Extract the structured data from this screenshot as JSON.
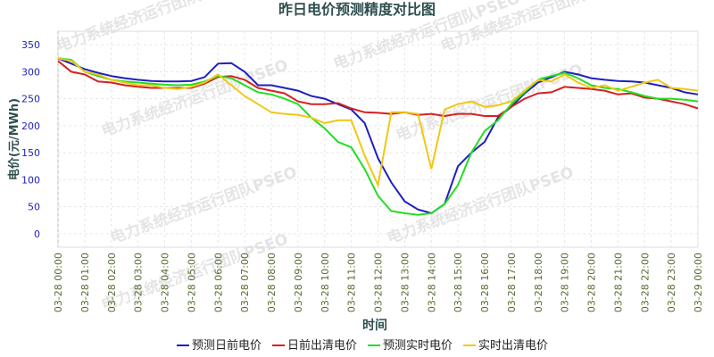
{
  "chart_data": {
    "type": "line",
    "title": "昨日电价预测精度对比图",
    "xlabel": "时间",
    "ylabel": "电价(元/MWh)",
    "watermark": "电力系统经济运行团队PSEO",
    "categories": [
      "03-28 00:00",
      null,
      "03-28 01:00",
      null,
      "03-28 02:00",
      null,
      "03-28 03:00",
      null,
      "03-28 04:00",
      null,
      "03-28 05:00",
      null,
      "03-28 06:00",
      null,
      "03-28 07:00",
      null,
      "03-28 08:00",
      null,
      "03-28 09:00",
      null,
      "03-28 10:00",
      null,
      "03-28 11:00",
      null,
      "03-28 12:00",
      null,
      "03-28 13:00",
      null,
      "03-28 14:00",
      null,
      "03-28 15:00",
      null,
      "03-28 16:00",
      null,
      "03-28 17:00",
      null,
      "03-28 18:00",
      null,
      "03-28 19:00",
      null,
      "03-28 20:00",
      null,
      "03-28 21:00",
      null,
      "03-28 22:00",
      null,
      "03-28 23:00",
      null,
      "03-29 00:00"
    ],
    "ylim": [
      -25,
      375
    ],
    "yticks": [
      0,
      50,
      100,
      150,
      200,
      250,
      300,
      350
    ],
    "grid": true,
    "legend": "bottom",
    "series": [
      {
        "name": "预测日前电价",
        "color": "#1f1fbf",
        "values": [
          325,
          315,
          305,
          298,
          292,
          288,
          285,
          283,
          282,
          282,
          283,
          290,
          315,
          316,
          300,
          275,
          275,
          270,
          265,
          255,
          250,
          240,
          230,
          205,
          140,
          95,
          60,
          45,
          38,
          55,
          125,
          150,
          170,
          215,
          235,
          260,
          280,
          290,
          300,
          295,
          288,
          285,
          283,
          282,
          280,
          275,
          270,
          262,
          258
        ]
      },
      {
        "name": "日前出清电价",
        "color": "#d62020",
        "values": [
          320,
          300,
          295,
          282,
          280,
          275,
          272,
          270,
          270,
          270,
          270,
          278,
          290,
          292,
          285,
          270,
          265,
          260,
          245,
          240,
          240,
          242,
          232,
          225,
          224,
          222,
          225,
          220,
          222,
          218,
          222,
          222,
          218,
          218,
          235,
          250,
          260,
          262,
          272,
          270,
          268,
          265,
          258,
          260,
          252,
          250,
          245,
          240,
          232
        ]
      },
      {
        "name": "预测实时电价",
        "color": "#22dd22",
        "values": [
          325,
          322,
          300,
          292,
          285,
          282,
          280,
          278,
          276,
          275,
          276,
          282,
          292,
          288,
          275,
          262,
          258,
          250,
          240,
          215,
          195,
          170,
          160,
          120,
          70,
          42,
          38,
          35,
          38,
          55,
          90,
          150,
          190,
          210,
          240,
          262,
          285,
          292,
          298,
          288,
          275,
          270,
          268,
          262,
          255,
          250,
          250,
          248,
          245
        ]
      },
      {
        "name": "实时出清电价",
        "color": "#f0c814",
        "values": [
          325,
          320,
          300,
          295,
          285,
          280,
          275,
          275,
          270,
          268,
          272,
          280,
          295,
          275,
          255,
          240,
          225,
          222,
          220,
          215,
          205,
          210,
          210,
          145,
          90,
          225,
          225,
          222,
          120,
          230,
          240,
          245,
          235,
          238,
          245,
          265,
          285,
          282,
          295,
          280,
          270,
          275,
          265,
          272,
          280,
          285,
          270,
          268,
          265
        ]
      }
    ]
  }
}
